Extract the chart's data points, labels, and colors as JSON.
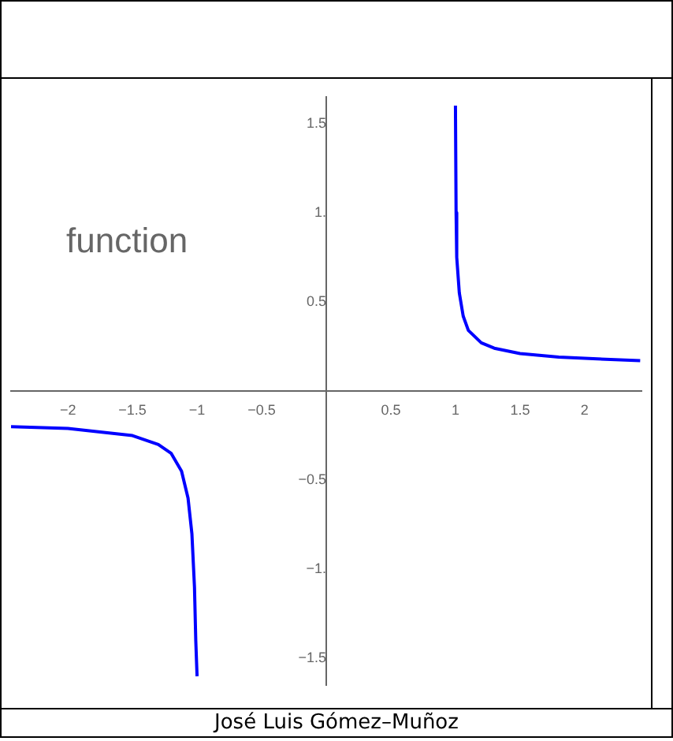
{
  "chart_data": {
    "type": "line",
    "annotations": [
      "function",
      "José Luis Gómez–Muñoz"
    ],
    "xlim": [
      -2.44,
      2.44
    ],
    "ylim": [
      -1.65,
      1.65
    ],
    "xticks": [
      {
        "value": -2,
        "label": "−2"
      },
      {
        "value": -1.5,
        "label": "−1.5"
      },
      {
        "value": -1,
        "label": "−1"
      },
      {
        "value": -0.5,
        "label": "−0.5"
      },
      0.5,
      1,
      1.5,
      2
    ],
    "yticks": [
      {
        "value": -1.5,
        "label": "−1.5"
      },
      {
        "value": -1,
        "label": "−1."
      },
      {
        "value": -0.5,
        "label": "−0.5"
      },
      0.5,
      {
        "value": 1,
        "label": "1."
      },
      1.5
    ],
    "grid": false,
    "legend": false,
    "marker": "none",
    "line_style": "solid",
    "series": [
      {
        "color": "#0000ff",
        "x": [
          1.0,
          1.005,
          1.01,
          1.03,
          1.06,
          1.1,
          1.2,
          1.3,
          1.5,
          1.8,
          2.1,
          2.43
        ],
        "values": [
          1.6,
          1.0,
          0.75,
          0.55,
          0.42,
          0.34,
          0.27,
          0.24,
          0.21,
          0.19,
          0.18,
          0.17
        ]
      },
      {
        "color": "#0000ff",
        "x": [
          -2.44,
          -2,
          -1.5,
          -1.3,
          -1.2,
          -1.12,
          -1.07,
          -1.04,
          -1.02,
          -1.01,
          -1.0
        ],
        "values": [
          -0.2,
          -0.21,
          -0.25,
          -0.3,
          -0.35,
          -0.45,
          -0.6,
          -0.8,
          -1.1,
          -1.4,
          -1.6
        ]
      }
    ]
  }
}
